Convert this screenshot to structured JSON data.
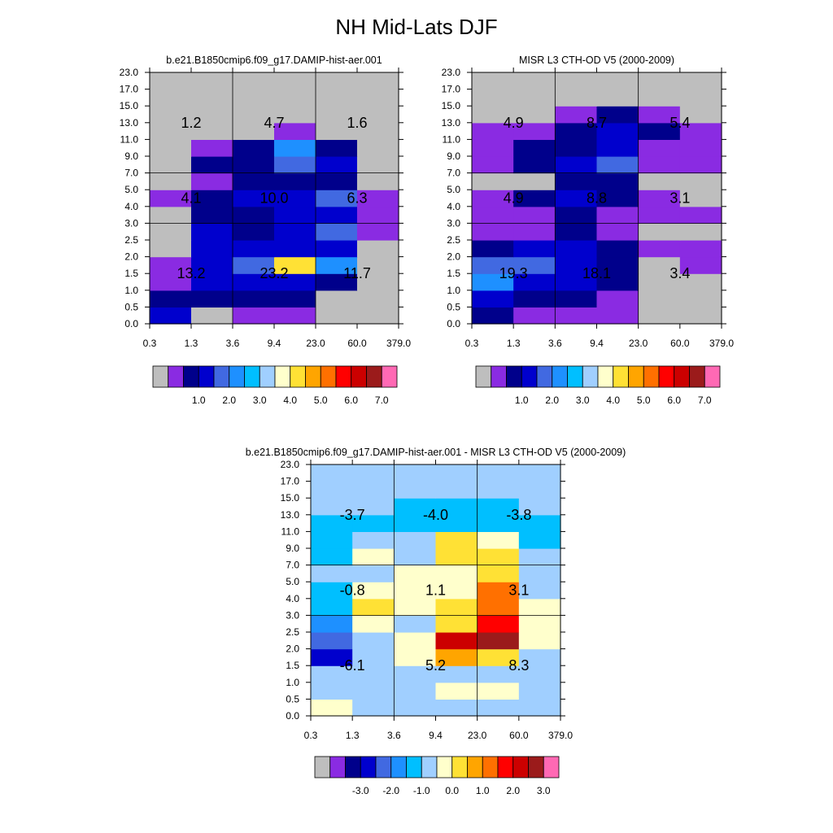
{
  "title": "NH Mid-Lats DJF",
  "colors": {
    "missing": "#BEBEBE",
    "cell_text": "#000000"
  },
  "chart_data": [
    {
      "type": "heatmap",
      "title": "b.e21.B1850cmip6.f09_g17.DAMIP-hist-aer.001",
      "x_ticks": [
        "0.3",
        "1.3",
        "3.6",
        "9.4",
        "23.0",
        "60.0",
        "379.0"
      ],
      "y_ticks": [
        "0.0",
        "0.5",
        "1.0",
        "1.5",
        "2.0",
        "2.5",
        "3.0",
        "4.0",
        "5.0",
        "7.0",
        "9.0",
        "11.0",
        "13.0",
        "15.0",
        "17.0",
        "23.0"
      ],
      "cells": [
        [
          3,
          0,
          1,
          1,
          0,
          0
        ],
        [
          2,
          2,
          2,
          2,
          0,
          0
        ],
        [
          1,
          3,
          3,
          3,
          2,
          0
        ],
        [
          1,
          3,
          4,
          9,
          5,
          0
        ],
        [
          0,
          3,
          3,
          3,
          3,
          0
        ],
        [
          0,
          3,
          2,
          3,
          4,
          1
        ],
        [
          0,
          2,
          2,
          3,
          3,
          1
        ],
        [
          1,
          2,
          3,
          3,
          4,
          1
        ],
        [
          0,
          1,
          2,
          2,
          2,
          0
        ],
        [
          0,
          2,
          2,
          4,
          3,
          0
        ],
        [
          0,
          1,
          2,
          5,
          2,
          0
        ],
        [
          0,
          0,
          0,
          1,
          0,
          0
        ],
        [
          0,
          0,
          0,
          0,
          0,
          0
        ],
        [
          0,
          0,
          0,
          0,
          0,
          0
        ],
        [
          0,
          0,
          0,
          0,
          0,
          0
        ]
      ],
      "block_labels": [
        {
          "row": 0,
          "col": 0,
          "text": "13.2"
        },
        {
          "row": 0,
          "col": 1,
          "text": "23.2"
        },
        {
          "row": 0,
          "col": 2,
          "text": "11.7"
        },
        {
          "row": 1,
          "col": 0,
          "text": "4.1"
        },
        {
          "row": 1,
          "col": 1,
          "text": "10.0"
        },
        {
          "row": 1,
          "col": 2,
          "text": "6.3"
        },
        {
          "row": 2,
          "col": 0,
          "text": "1.2"
        },
        {
          "row": 2,
          "col": 1,
          "text": "4.7"
        },
        {
          "row": 2,
          "col": 2,
          "text": "1.6"
        }
      ],
      "colorbar": {
        "colors": [
          "#BEBEBE",
          "#8A2BE2",
          "#00008B",
          "#0000CD",
          "#4169E1",
          "#1E90FF",
          "#00BFFF",
          "#A0CFFF",
          "#FFFFCC",
          "#FFE135",
          "#FFA500",
          "#FF7000",
          "#FF0000",
          "#CC0000",
          "#9B1B1B",
          "#FF69B4"
        ],
        "labels": [
          "1.0",
          "2.0",
          "3.0",
          "4.0",
          "5.0",
          "6.0",
          "7.0"
        ]
      }
    },
    {
      "type": "heatmap",
      "title": "MISR L3 CTH-OD V5 (2000-2009)",
      "x_ticks": [
        "0.3",
        "1.3",
        "3.6",
        "9.4",
        "23.0",
        "60.0",
        "379.0"
      ],
      "y_ticks": [
        "0.0",
        "0.5",
        "1.0",
        "1.5",
        "2.0",
        "2.5",
        "3.0",
        "4.0",
        "5.0",
        "7.0",
        "9.0",
        "11.0",
        "13.0",
        "15.0",
        "17.0",
        "23.0"
      ],
      "cells": [
        [
          2,
          1,
          1,
          1,
          0,
          0
        ],
        [
          3,
          2,
          2,
          1,
          0,
          0
        ],
        [
          5,
          3,
          3,
          2,
          0,
          0
        ],
        [
          4,
          4,
          3,
          2,
          0,
          1
        ],
        [
          2,
          3,
          3,
          2,
          1,
          1
        ],
        [
          1,
          1,
          2,
          1,
          0,
          0
        ],
        [
          1,
          1,
          2,
          1,
          1,
          1
        ],
        [
          1,
          2,
          3,
          2,
          1,
          0
        ],
        [
          0,
          0,
          2,
          2,
          0,
          0
        ],
        [
          1,
          2,
          3,
          4,
          1,
          1
        ],
        [
          1,
          2,
          2,
          3,
          1,
          1
        ],
        [
          1,
          1,
          2,
          3,
          2,
          1
        ],
        [
          0,
          0,
          1,
          2,
          1,
          0
        ],
        [
          0,
          0,
          0,
          0,
          0,
          0
        ],
        [
          0,
          0,
          0,
          0,
          0,
          0
        ]
      ],
      "block_labels": [
        {
          "row": 0,
          "col": 0,
          "text": "19.3"
        },
        {
          "row": 0,
          "col": 1,
          "text": "18.1"
        },
        {
          "row": 0,
          "col": 2,
          "text": "3.4"
        },
        {
          "row": 1,
          "col": 0,
          "text": "4.9"
        },
        {
          "row": 1,
          "col": 1,
          "text": "8.8"
        },
        {
          "row": 1,
          "col": 2,
          "text": "3.1"
        },
        {
          "row": 2,
          "col": 0,
          "text": "4.9"
        },
        {
          "row": 2,
          "col": 1,
          "text": "8.7"
        },
        {
          "row": 2,
          "col": 2,
          "text": "5.4"
        }
      ],
      "colorbar": {
        "colors": [
          "#BEBEBE",
          "#8A2BE2",
          "#00008B",
          "#0000CD",
          "#4169E1",
          "#1E90FF",
          "#00BFFF",
          "#A0CFFF",
          "#FFFFCC",
          "#FFE135",
          "#FFA500",
          "#FF7000",
          "#FF0000",
          "#CC0000",
          "#9B1B1B",
          "#FF69B4"
        ],
        "labels": [
          "1.0",
          "2.0",
          "3.0",
          "4.0",
          "5.0",
          "6.0",
          "7.0"
        ]
      }
    },
    {
      "type": "heatmap",
      "title": "b.e21.B1850cmip6.f09_g17.DAMIP-hist-aer.001 - MISR L3 CTH-OD V5 (2000-2009)",
      "x_ticks": [
        "0.3",
        "1.3",
        "3.6",
        "9.4",
        "23.0",
        "60.0",
        "379.0"
      ],
      "y_ticks": [
        "0.0",
        "0.5",
        "1.0",
        "1.5",
        "2.0",
        "2.5",
        "3.0",
        "4.0",
        "5.0",
        "7.0",
        "9.0",
        "11.0",
        "13.0",
        "15.0",
        "17.0",
        "23.0"
      ],
      "cells": [
        [
          8,
          7,
          7,
          7,
          7,
          7
        ],
        [
          7,
          7,
          7,
          8,
          8,
          7
        ],
        [
          7,
          7,
          7,
          7,
          7,
          7
        ],
        [
          3,
          7,
          8,
          10,
          9,
          7
        ],
        [
          4,
          7,
          8,
          13,
          14,
          8
        ],
        [
          5,
          8,
          7,
          9,
          12,
          8
        ],
        [
          6,
          9,
          8,
          9,
          11,
          8
        ],
        [
          6,
          8,
          8,
          8,
          11,
          7
        ],
        [
          7,
          7,
          8,
          8,
          9,
          7
        ],
        [
          6,
          8,
          7,
          9,
          9,
          7
        ],
        [
          6,
          7,
          7,
          9,
          8,
          6
        ],
        [
          6,
          6,
          6,
          6,
          6,
          6
        ],
        [
          7,
          7,
          6,
          6,
          6,
          7
        ],
        [
          7,
          7,
          7,
          7,
          7,
          7
        ],
        [
          7,
          7,
          7,
          7,
          7,
          7
        ]
      ],
      "block_labels": [
        {
          "row": 0,
          "col": 0,
          "text": "-6.1"
        },
        {
          "row": 0,
          "col": 1,
          "text": "5.2"
        },
        {
          "row": 0,
          "col": 2,
          "text": "8.3"
        },
        {
          "row": 1,
          "col": 0,
          "text": "-0.8"
        },
        {
          "row": 1,
          "col": 1,
          "text": "1.1"
        },
        {
          "row": 1,
          "col": 2,
          "text": "3.1"
        },
        {
          "row": 2,
          "col": 0,
          "text": "-3.7"
        },
        {
          "row": 2,
          "col": 1,
          "text": "-4.0"
        },
        {
          "row": 2,
          "col": 2,
          "text": "-3.8"
        }
      ],
      "colorbar": {
        "colors": [
          "#BEBEBE",
          "#8A2BE2",
          "#00008B",
          "#0000CD",
          "#4169E1",
          "#1E90FF",
          "#00BFFF",
          "#A0CFFF",
          "#FFFFCC",
          "#FFE135",
          "#FFA500",
          "#FF7000",
          "#FF0000",
          "#CC0000",
          "#9B1B1B",
          "#FF69B4"
        ],
        "labels": [
          "-3.0",
          "-2.0",
          "-1.0",
          "0.0",
          "1.0",
          "2.0",
          "3.0"
        ]
      }
    }
  ]
}
